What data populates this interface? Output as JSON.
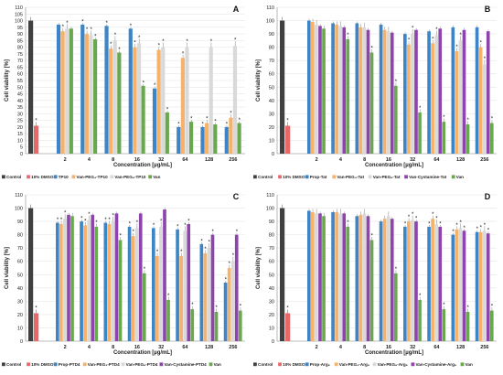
{
  "figure": {
    "xlabel": "Concentration [µg/mL]",
    "ylabel": "Cell viability [%]"
  },
  "chart_data": [
    {
      "type": "bar",
      "panel": "A",
      "xlabel": "Concentration [µg/mL]",
      "ylabel": "Cell viability [%]",
      "ylim": [
        0,
        110
      ],
      "yticks": [
        0,
        5,
        10,
        15,
        20,
        25,
        30,
        35,
        40,
        45,
        50,
        55,
        60,
        65,
        70,
        75,
        80,
        85,
        90,
        95,
        100,
        105,
        110
      ],
      "categories": [
        "2",
        "4",
        "8",
        "16",
        "32",
        "64",
        "128",
        "256"
      ],
      "controls": [
        {
          "name": "Control",
          "value": 100,
          "color": "#404040"
        },
        {
          "name": "10% DMSO",
          "value": 21,
          "color": "#e8686a",
          "star": true
        }
      ],
      "series": [
        {
          "name": "TP10",
          "color": "#3d85c6",
          "values": [
            97,
            97,
            96,
            94,
            49,
            20,
            20,
            20
          ],
          "stars": [
            false,
            true,
            true,
            true,
            true,
            true,
            true,
            true
          ]
        },
        {
          "name": "Van-PEG₄-TP10",
          "color": "#f6b26b",
          "values": [
            92,
            90,
            79,
            80,
            78,
            72,
            23,
            27
          ],
          "stars": [
            true,
            true,
            true,
            true,
            true,
            true,
            true,
            true
          ]
        },
        {
          "name": "Van-PEG₈-TP10",
          "color": "#d9d9d9",
          "values": [
            94,
            89,
            85,
            83,
            80,
            80,
            80,
            81
          ],
          "stars": [
            true,
            true,
            true,
            true,
            true,
            true,
            true,
            true
          ]
        },
        {
          "name": "Van",
          "color": "#6aa84f",
          "values": [
            94,
            86,
            76,
            51,
            31,
            24,
            22,
            23
          ],
          "stars": [
            false,
            true,
            true,
            true,
            true,
            true,
            true,
            true
          ]
        }
      ]
    },
    {
      "type": "bar",
      "panel": "B",
      "xlabel": "Concentration [µg/mL]",
      "ylabel": "Cell viability [%]",
      "ylim": [
        0,
        110
      ],
      "yticks": [
        0,
        10,
        20,
        30,
        40,
        50,
        60,
        70,
        80,
        90,
        100,
        110
      ],
      "categories": [
        "2",
        "4",
        "8",
        "16",
        "32",
        "64",
        "128",
        "256"
      ],
      "controls": [
        {
          "name": "Control",
          "value": 100,
          "color": "#404040"
        },
        {
          "name": "10% DMSO",
          "value": 21,
          "color": "#e8686a",
          "star": true
        }
      ],
      "series": [
        {
          "name": "Prop-Tat",
          "color": "#3d85c6",
          "values": [
            100,
            98,
            98,
            97,
            90,
            92,
            95,
            95
          ],
          "stars": [
            false,
            false,
            false,
            false,
            false,
            false,
            false,
            false
          ]
        },
        {
          "name": "Van-PEG₄-Tat",
          "color": "#f6b26b",
          "values": [
            99,
            97,
            95,
            93,
            82,
            83,
            77,
            80
          ],
          "stars": [
            false,
            false,
            false,
            false,
            true,
            true,
            true,
            true
          ]
        },
        {
          "name": "Van-PEG₈-Tat",
          "color": "#d9d9d9",
          "values": [
            97,
            96,
            95,
            92,
            90,
            89,
            85,
            67
          ],
          "stars": [
            false,
            false,
            false,
            false,
            true,
            true,
            true,
            true
          ]
        },
        {
          "name": "Van-Cystamine-Tat",
          "color": "#8e44ad",
          "values": [
            96,
            95,
            93,
            91,
            93,
            94,
            93,
            92
          ],
          "stars": [
            false,
            false,
            false,
            false,
            false,
            false,
            false,
            false
          ]
        },
        {
          "name": "Van",
          "color": "#6aa84f",
          "values": [
            94,
            86,
            76,
            51,
            31,
            24,
            22,
            23
          ],
          "stars": [
            false,
            true,
            true,
            true,
            true,
            true,
            true,
            true
          ]
        }
      ]
    },
    {
      "type": "bar",
      "panel": "C",
      "xlabel": "Concentration [µg/mL]",
      "ylabel": "Cell viability [%]",
      "ylim": [
        0,
        110
      ],
      "yticks": [
        0,
        10,
        20,
        30,
        40,
        50,
        60,
        70,
        80,
        90,
        100,
        110
      ],
      "categories": [
        "2",
        "4",
        "8",
        "16",
        "32",
        "64",
        "128",
        "256"
      ],
      "controls": [
        {
          "name": "Control",
          "value": 100,
          "color": "#404040"
        },
        {
          "name": "10% DMSO",
          "value": 21,
          "color": "#e8686a",
          "star": true
        }
      ],
      "series": [
        {
          "name": "Prop-PTD4",
          "color": "#3d85c6",
          "values": [
            89,
            90,
            89,
            86,
            85,
            84,
            73,
            44
          ],
          "stars": [
            true,
            true,
            true,
            true,
            true,
            true,
            true,
            true
          ]
        },
        {
          "name": "Van-PEG₄-PTD4",
          "color": "#f6b26b",
          "values": [
            88,
            87,
            88,
            79,
            64,
            64,
            66,
            55
          ],
          "stars": [
            true,
            true,
            true,
            true,
            true,
            true,
            true,
            true
          ]
        },
        {
          "name": "Van-PEG₈-PTD4",
          "color": "#d9d9d9",
          "values": [
            92,
            91,
            90,
            85,
            86,
            83,
            70,
            60
          ],
          "stars": [
            true,
            true,
            true,
            true,
            true,
            true,
            true,
            true
          ]
        },
        {
          "name": "Van-Cystamine-PTD4",
          "color": "#8e44ad",
          "values": [
            95,
            95,
            96,
            96,
            99,
            88,
            80,
            80
          ],
          "stars": [
            false,
            false,
            false,
            false,
            false,
            true,
            true,
            true
          ]
        },
        {
          "name": "Van",
          "color": "#6aa84f",
          "values": [
            94,
            86,
            76,
            51,
            31,
            24,
            22,
            23
          ],
          "stars": [
            false,
            true,
            true,
            true,
            true,
            true,
            true,
            true
          ]
        }
      ]
    },
    {
      "type": "bar",
      "panel": "D",
      "xlabel": "Concentration [µg/mL]",
      "ylabel": "Cell viability [%]",
      "ylim": [
        0,
        110
      ],
      "yticks": [
        0,
        10,
        20,
        30,
        40,
        50,
        60,
        70,
        80,
        90,
        100,
        110
      ],
      "categories": [
        "2",
        "4",
        "8",
        "16",
        "32",
        "64",
        "128",
        "256"
      ],
      "controls": [
        {
          "name": "Control",
          "value": 100,
          "color": "#404040"
        },
        {
          "name": "10% DMSO",
          "value": 21,
          "color": "#e8686a",
          "star": true
        }
      ],
      "series": [
        {
          "name": "Prop-Arg₈",
          "color": "#3d85c6",
          "values": [
            98,
            97,
            94,
            90,
            86,
            86,
            80,
            82
          ],
          "stars": [
            false,
            false,
            false,
            false,
            true,
            true,
            true,
            true
          ]
        },
        {
          "name": "Van-PEG₄-Arg₈",
          "color": "#f6b26b",
          "values": [
            97,
            97,
            95,
            92,
            90,
            92,
            84,
            82
          ],
          "stars": [
            false,
            false,
            false,
            false,
            true,
            true,
            true,
            true
          ]
        },
        {
          "name": "Van-PEG₈-Arg₈",
          "color": "#d9d9d9",
          "values": [
            96,
            96,
            96,
            94,
            91,
            88,
            85,
            83
          ],
          "stars": [
            false,
            false,
            false,
            false,
            true,
            true,
            true,
            true
          ]
        },
        {
          "name": "Van-Cystamine-Arg₈",
          "color": "#8e44ad",
          "values": [
            96,
            96,
            94,
            92,
            90,
            86,
            83,
            81
          ],
          "stars": [
            false,
            false,
            false,
            false,
            true,
            true,
            true,
            true
          ]
        },
        {
          "name": "Van",
          "color": "#6aa84f",
          "values": [
            94,
            86,
            76,
            51,
            31,
            24,
            22,
            23
          ],
          "stars": [
            false,
            true,
            true,
            true,
            true,
            true,
            true,
            true
          ]
        }
      ]
    }
  ]
}
